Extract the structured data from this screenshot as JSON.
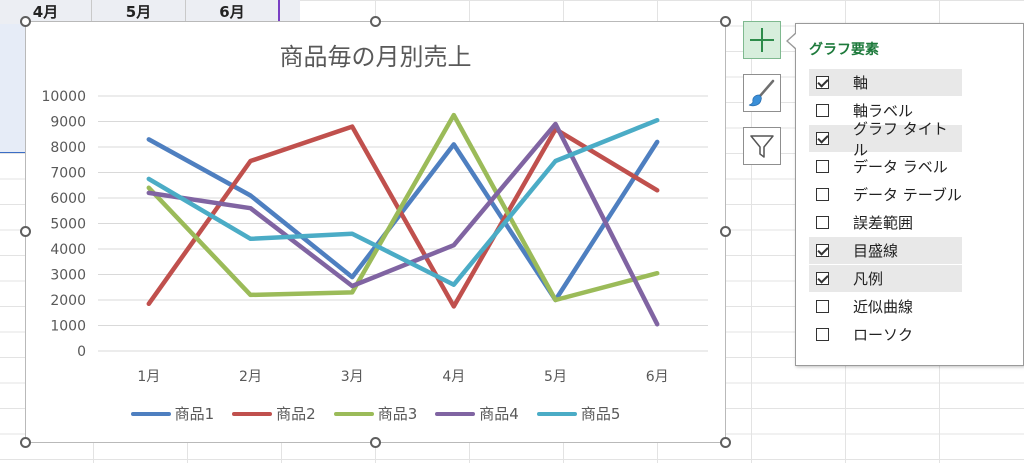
{
  "sheet": {
    "column_headers": [
      "4月",
      "5月",
      "6月"
    ]
  },
  "chart": {
    "title": "商品毎の月別売上"
  },
  "chart_data": {
    "type": "line",
    "title": "商品毎の月別売上",
    "categories": [
      "1月",
      "2月",
      "3月",
      "4月",
      "5月",
      "6月"
    ],
    "ylim": [
      0,
      10000
    ],
    "yticks": [
      0,
      1000,
      2000,
      3000,
      4000,
      5000,
      6000,
      7000,
      8000,
      9000,
      10000
    ],
    "grid": true,
    "legend": "bottom",
    "series": [
      {
        "name": "商品1",
        "color": "#4e7fc0",
        "values": [
          8300,
          6100,
          2900,
          8100,
          2000,
          8200
        ]
      },
      {
        "name": "商品2",
        "color": "#c0504d",
        "values": [
          1850,
          7450,
          8800,
          1750,
          8700,
          6300
        ]
      },
      {
        "name": "商品3",
        "color": "#9bbb59",
        "values": [
          6400,
          2200,
          2300,
          9250,
          2000,
          3050
        ]
      },
      {
        "name": "商品4",
        "color": "#8064a2",
        "values": [
          6200,
          5600,
          2550,
          4150,
          8900,
          1050
        ]
      },
      {
        "name": "商品5",
        "color": "#4bacc6",
        "values": [
          6750,
          4400,
          4600,
          2600,
          7450,
          9050
        ]
      }
    ]
  },
  "side_buttons": {
    "elements_icon": "plus-icon",
    "styles_icon": "paintbrush-icon",
    "filter_icon": "funnel-icon"
  },
  "flyout": {
    "title": "グラフ要素",
    "items": [
      {
        "label": "軸",
        "checked": true
      },
      {
        "label": "軸ラベル",
        "checked": false
      },
      {
        "label": "グラフ タイトル",
        "checked": true
      },
      {
        "label": "データ ラベル",
        "checked": false
      },
      {
        "label": "データ テーブル",
        "checked": false
      },
      {
        "label": "誤差範囲",
        "checked": false
      },
      {
        "label": "目盛線",
        "checked": true
      },
      {
        "label": "凡例",
        "checked": true
      },
      {
        "label": "近似曲線",
        "checked": false
      },
      {
        "label": "ローソク",
        "checked": false
      }
    ]
  }
}
